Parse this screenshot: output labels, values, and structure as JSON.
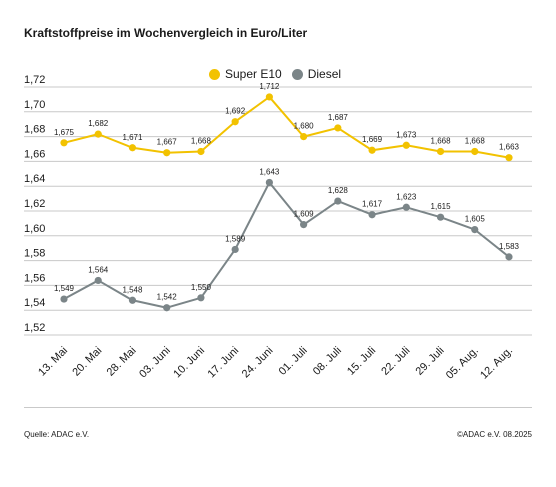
{
  "header": {
    "title": "Kraftstoffpreise im Wochenvergleich in Euro/Liter"
  },
  "footer": {
    "source": "Quelle: ADAC e.V.",
    "copyright": "©ADAC e.V. 08.2025"
  },
  "colors": {
    "super_e10": "#f2c200",
    "diesel": "#7b8588",
    "grid": "#c8c8c8",
    "text": "#1a1a1a"
  },
  "chart_data": {
    "type": "line",
    "title": "Kraftstoffpreise im Wochenvergleich in Euro/Liter",
    "xlabel": "",
    "ylabel": "",
    "categories": [
      "13. Mai",
      "20. Mai",
      "28. Mai",
      "03. Juni",
      "10. Juni",
      "17. Juni",
      "24. Juni",
      "01. Juli",
      "08. Juli",
      "15. Juli",
      "22. Juli",
      "29. Juli",
      "05. Aug.",
      "12. Aug."
    ],
    "ylim": [
      1.52,
      1.72
    ],
    "yticks": [
      "1,52",
      "1,54",
      "1,56",
      "1,58",
      "1,60",
      "1,62",
      "1,64",
      "1,66",
      "1,68",
      "1,70",
      "1,72"
    ],
    "grid": true,
    "legend_position": "top-center",
    "series": [
      {
        "name": "Super E10",
        "color": "#f2c200",
        "values": [
          1.675,
          1.682,
          1.671,
          1.667,
          1.668,
          1.692,
          1.712,
          1.68,
          1.687,
          1.669,
          1.673,
          1.668,
          1.668,
          1.663
        ],
        "labels": [
          "1,675",
          "1,682",
          "1,671",
          "1,667",
          "1,668",
          "1,692",
          "1,712",
          "1,680",
          "1,687",
          "1,669",
          "1,673",
          "1,668",
          "1,668",
          "1,663"
        ]
      },
      {
        "name": "Diesel",
        "color": "#7b8588",
        "values": [
          1.549,
          1.564,
          1.548,
          1.542,
          1.55,
          1.589,
          1.643,
          1.609,
          1.628,
          1.617,
          1.623,
          1.615,
          1.605,
          1.583
        ],
        "labels": [
          "1,549",
          "1,564",
          "1,548",
          "1,542",
          "1,550",
          "1,589",
          "1,643",
          "1,609",
          "1,628",
          "1,617",
          "1,623",
          "1,615",
          "1,605",
          "1,583"
        ]
      }
    ]
  }
}
